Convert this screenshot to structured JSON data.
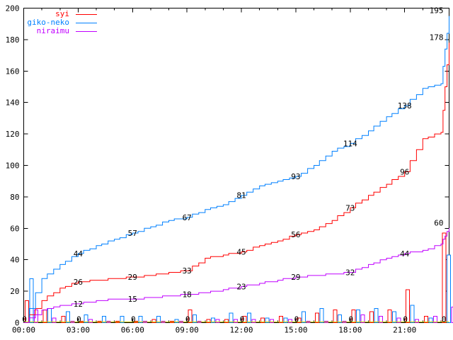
{
  "chart_data": {
    "type": "line",
    "title": "",
    "xlabel": "",
    "ylabel": "",
    "ylim": [
      0,
      200
    ],
    "y_tick_step": 20,
    "y_ticks": [
      0,
      20,
      40,
      60,
      80,
      100,
      120,
      140,
      160,
      180,
      200
    ],
    "x_max_hours": 23.45,
    "x_major_step_hours": 3,
    "x_minor_step_hours": 1,
    "x_tick_labels": [
      "00:00",
      "03:00",
      "06:00",
      "09:00",
      "12:00",
      "15:00",
      "18:00",
      "21:00"
    ],
    "grid": false,
    "legend_position": "top-left-inside",
    "label_hours": [
      3,
      6,
      9,
      12,
      15,
      18,
      21
    ],
    "series": [
      {
        "name": "syi",
        "color": "#ff0000",
        "cumulative_hourly": [
          0,
          14,
          22,
          26,
          27,
          28,
          29,
          30,
          32,
          33,
          41,
          43,
          45,
          49,
          52,
          56,
          59,
          65,
          73,
          81,
          88,
          96,
          117,
          121
        ],
        "final_value": 178,
        "labels_3h": [
          26,
          29,
          33,
          45,
          56,
          73,
          96
        ],
        "end_label": "178",
        "bars_hourly": [
          14,
          8,
          4,
          1,
          1,
          1,
          1,
          2,
          1,
          8,
          2,
          2,
          4,
          3,
          4,
          3,
          6,
          8,
          8,
          7,
          8,
          21,
          4,
          57
        ]
      },
      {
        "name": "giko-neko",
        "color": "#0080ff",
        "cumulative_hourly": [
          0,
          28,
          37,
          44,
          49,
          53,
          57,
          61,
          65,
          67,
          72,
          75,
          81,
          87,
          90,
          93,
          100,
          109,
          114,
          122,
          131,
          138,
          149,
          152
        ],
        "final_value": 195,
        "labels_3h": [
          44,
          57,
          67,
          81,
          93,
          114,
          138
        ],
        "end_label": "195",
        "bars_hourly": [
          28,
          9,
          7,
          5,
          4,
          4,
          4,
          4,
          2,
          5,
          3,
          6,
          6,
          3,
          3,
          7,
          9,
          5,
          8,
          9,
          7,
          11,
          3,
          43
        ]
      },
      {
        "name": "niraimu",
        "color": "#c000ff",
        "cumulative_hourly": [
          0,
          8,
          11,
          12,
          14,
          15,
          15,
          16,
          17,
          18,
          19,
          21,
          23,
          25,
          27,
          29,
          30,
          31,
          32,
          37,
          41,
          44,
          46,
          50
        ],
        "final_value": 60,
        "labels_3h": [
          12,
          15,
          18,
          23,
          29,
          32,
          44
        ],
        "end_label": "60",
        "bars_hourly": [
          8,
          3,
          1,
          2,
          1,
          0,
          1,
          1,
          1,
          1,
          2,
          2,
          2,
          2,
          2,
          1,
          1,
          1,
          5,
          4,
          3,
          2,
          4,
          10
        ]
      }
    ],
    "zero_series": {
      "color": "#c8c800",
      "value": 0,
      "label_hours": [
        0,
        3,
        6,
        9,
        12,
        15,
        18,
        21
      ],
      "label_text": "0",
      "end_label": "0"
    },
    "axis_color": "#000000",
    "background_color": "#ffffff"
  },
  "legend": {
    "entries": [
      {
        "label": "syi"
      },
      {
        "label": "giko-neko"
      },
      {
        "label": "niraimu"
      }
    ]
  }
}
